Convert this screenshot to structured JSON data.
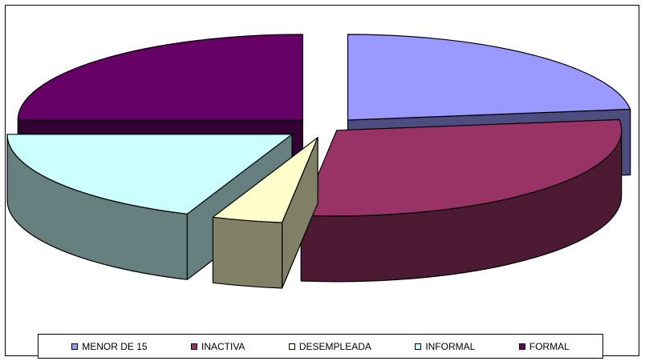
{
  "chart_data": {
    "type": "pie",
    "style": "3d-exploded",
    "categories": [
      "MENOR DE 15",
      "INACTIVA",
      "DESEMPLEADA",
      "INFORMAL",
      "FORMAL"
    ],
    "values": [
      23,
      29,
      4,
      19,
      25
    ],
    "colors": [
      "#9999FF",
      "#993366",
      "#FFFFCC",
      "#CCFFFF",
      "#660066"
    ],
    "side_colors": [
      "#4D4D80",
      "#4D1A33",
      "#808066",
      "#668080",
      "#330033"
    ],
    "legend_position": "bottom",
    "title": "",
    "grid": false
  }
}
